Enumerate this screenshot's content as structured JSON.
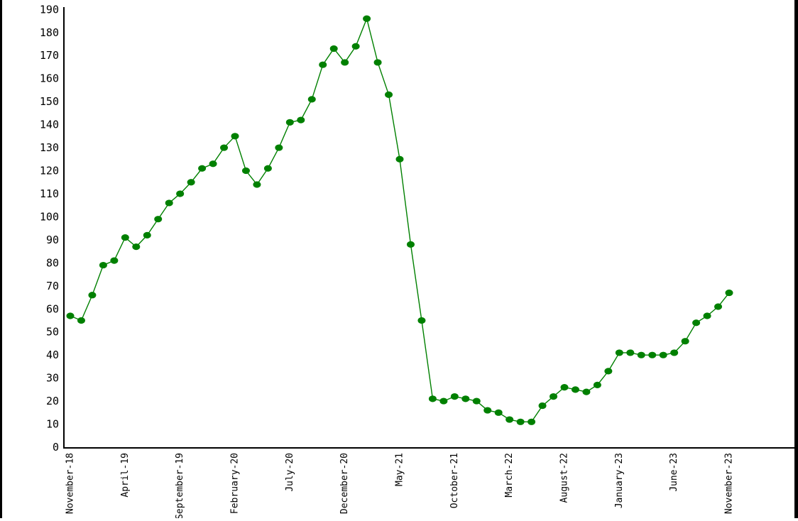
{
  "page": {
    "background_color": "#ffffff",
    "left_edge_bar_color": "#000000",
    "right_edge_bar_color": "#000000"
  },
  "chart_data": {
    "type": "line",
    "title": "",
    "xlabel": "",
    "ylabel": "",
    "grid": false,
    "legend": "none",
    "marker": "circle",
    "axis_color": "#000000",
    "ylim": [
      0,
      190
    ],
    "y_ticks": [
      0,
      10,
      20,
      30,
      40,
      50,
      60,
      70,
      80,
      90,
      100,
      110,
      120,
      130,
      140,
      150,
      160,
      170,
      180,
      190
    ],
    "n_points": 61,
    "x_start_month": "November-18",
    "x_end_month": "November-23",
    "x_label_every_n_points": 5,
    "x_tick_labels": [
      "November-18",
      "April-19",
      "September-19",
      "February-20",
      "July-20",
      "December-20",
      "May-21",
      "October-21",
      "March-22",
      "August-22",
      "January-23",
      "June-23",
      "November-23"
    ],
    "series": [
      {
        "name": "monthly-values",
        "color": "#008000",
        "values": [
          57,
          55,
          66,
          79,
          81,
          91,
          87,
          92,
          99,
          106,
          110,
          115,
          121,
          123,
          130,
          135,
          120,
          114,
          121,
          130,
          141,
          142,
          151,
          166,
          173,
          167,
          174,
          186,
          167,
          153,
          125,
          88,
          55,
          21,
          20,
          22,
          21,
          20,
          16,
          15,
          12,
          11,
          11,
          18,
          22,
          26,
          25,
          24,
          27,
          33,
          41,
          41,
          40,
          40,
          40,
          41,
          46,
          54,
          57,
          61,
          67
        ]
      }
    ]
  }
}
